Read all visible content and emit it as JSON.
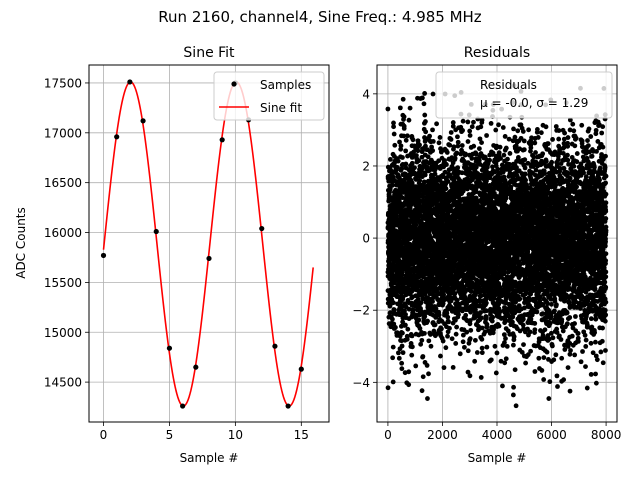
{
  "suptitle": "Run 2160, channel4, Sine Freq.: 4.985 MHz",
  "chart_data": [
    {
      "type": "line",
      "title": "Sine Fit",
      "xlabel": "Sample #",
      "ylabel": "ADC Counts",
      "xlim": [
        -1.1,
        17.1
      ],
      "ylim": [
        14100,
        17680
      ],
      "xticks": [
        0,
        5,
        10,
        15
      ],
      "yticks": [
        14500,
        15000,
        15500,
        16000,
        16500,
        17000,
        17500
      ],
      "grid": true,
      "legend_position": "top-right",
      "series": [
        {
          "name": "Samples",
          "kind": "scatter",
          "color": "#000000",
          "x": [
            0,
            1,
            2,
            3,
            4,
            5,
            6,
            7,
            8,
            9,
            10,
            11,
            12,
            13,
            14,
            15
          ],
          "y": [
            15770,
            16960,
            17510,
            17120,
            16010,
            14840,
            14260,
            14650,
            15740,
            16930,
            17500,
            17130,
            16040,
            14860,
            14260,
            14630
          ]
        },
        {
          "name": "Sine fit",
          "kind": "line",
          "color": "#ff0000",
          "model": {
            "mean": 15885,
            "amplitude": 1625,
            "period": 8.02,
            "phase_x0": 0.045
          },
          "x_range": [
            0,
            15.9
          ]
        }
      ]
    },
    {
      "type": "scatter",
      "title": "Residuals",
      "xlabel": "Sample #",
      "ylabel": "",
      "xlim": [
        -400,
        8400
      ],
      "ylim": [
        -5.1,
        4.8
      ],
      "xticks": [
        0,
        2000,
        4000,
        6000,
        8000
      ],
      "yticks": [
        -4,
        -2,
        0,
        2,
        4
      ],
      "grid": true,
      "legend_position": "top-right",
      "series": [
        {
          "name": "Residuals",
          "color": "#000000",
          "n_points": 8000,
          "mean": -0.0,
          "sigma": 1.29,
          "outliers": [
            {
              "x": 5,
              "y": -4.15
            },
            {
              "x": 4600,
              "y": -4.35
            },
            {
              "x": 4700,
              "y": -4.65
            },
            {
              "x": 1450,
              "y": -4.45
            },
            {
              "x": 5900,
              "y": -4.45
            },
            {
              "x": 2450,
              "y": 3.95
            },
            {
              "x": 7920,
              "y": 4.15
            },
            {
              "x": 560,
              "y": 3.85
            },
            {
              "x": 4200,
              "y": -4.1
            }
          ]
        }
      ],
      "legend_label": "Residuals",
      "legend_stats": "μ = -0.0, σ = 1.29"
    }
  ]
}
